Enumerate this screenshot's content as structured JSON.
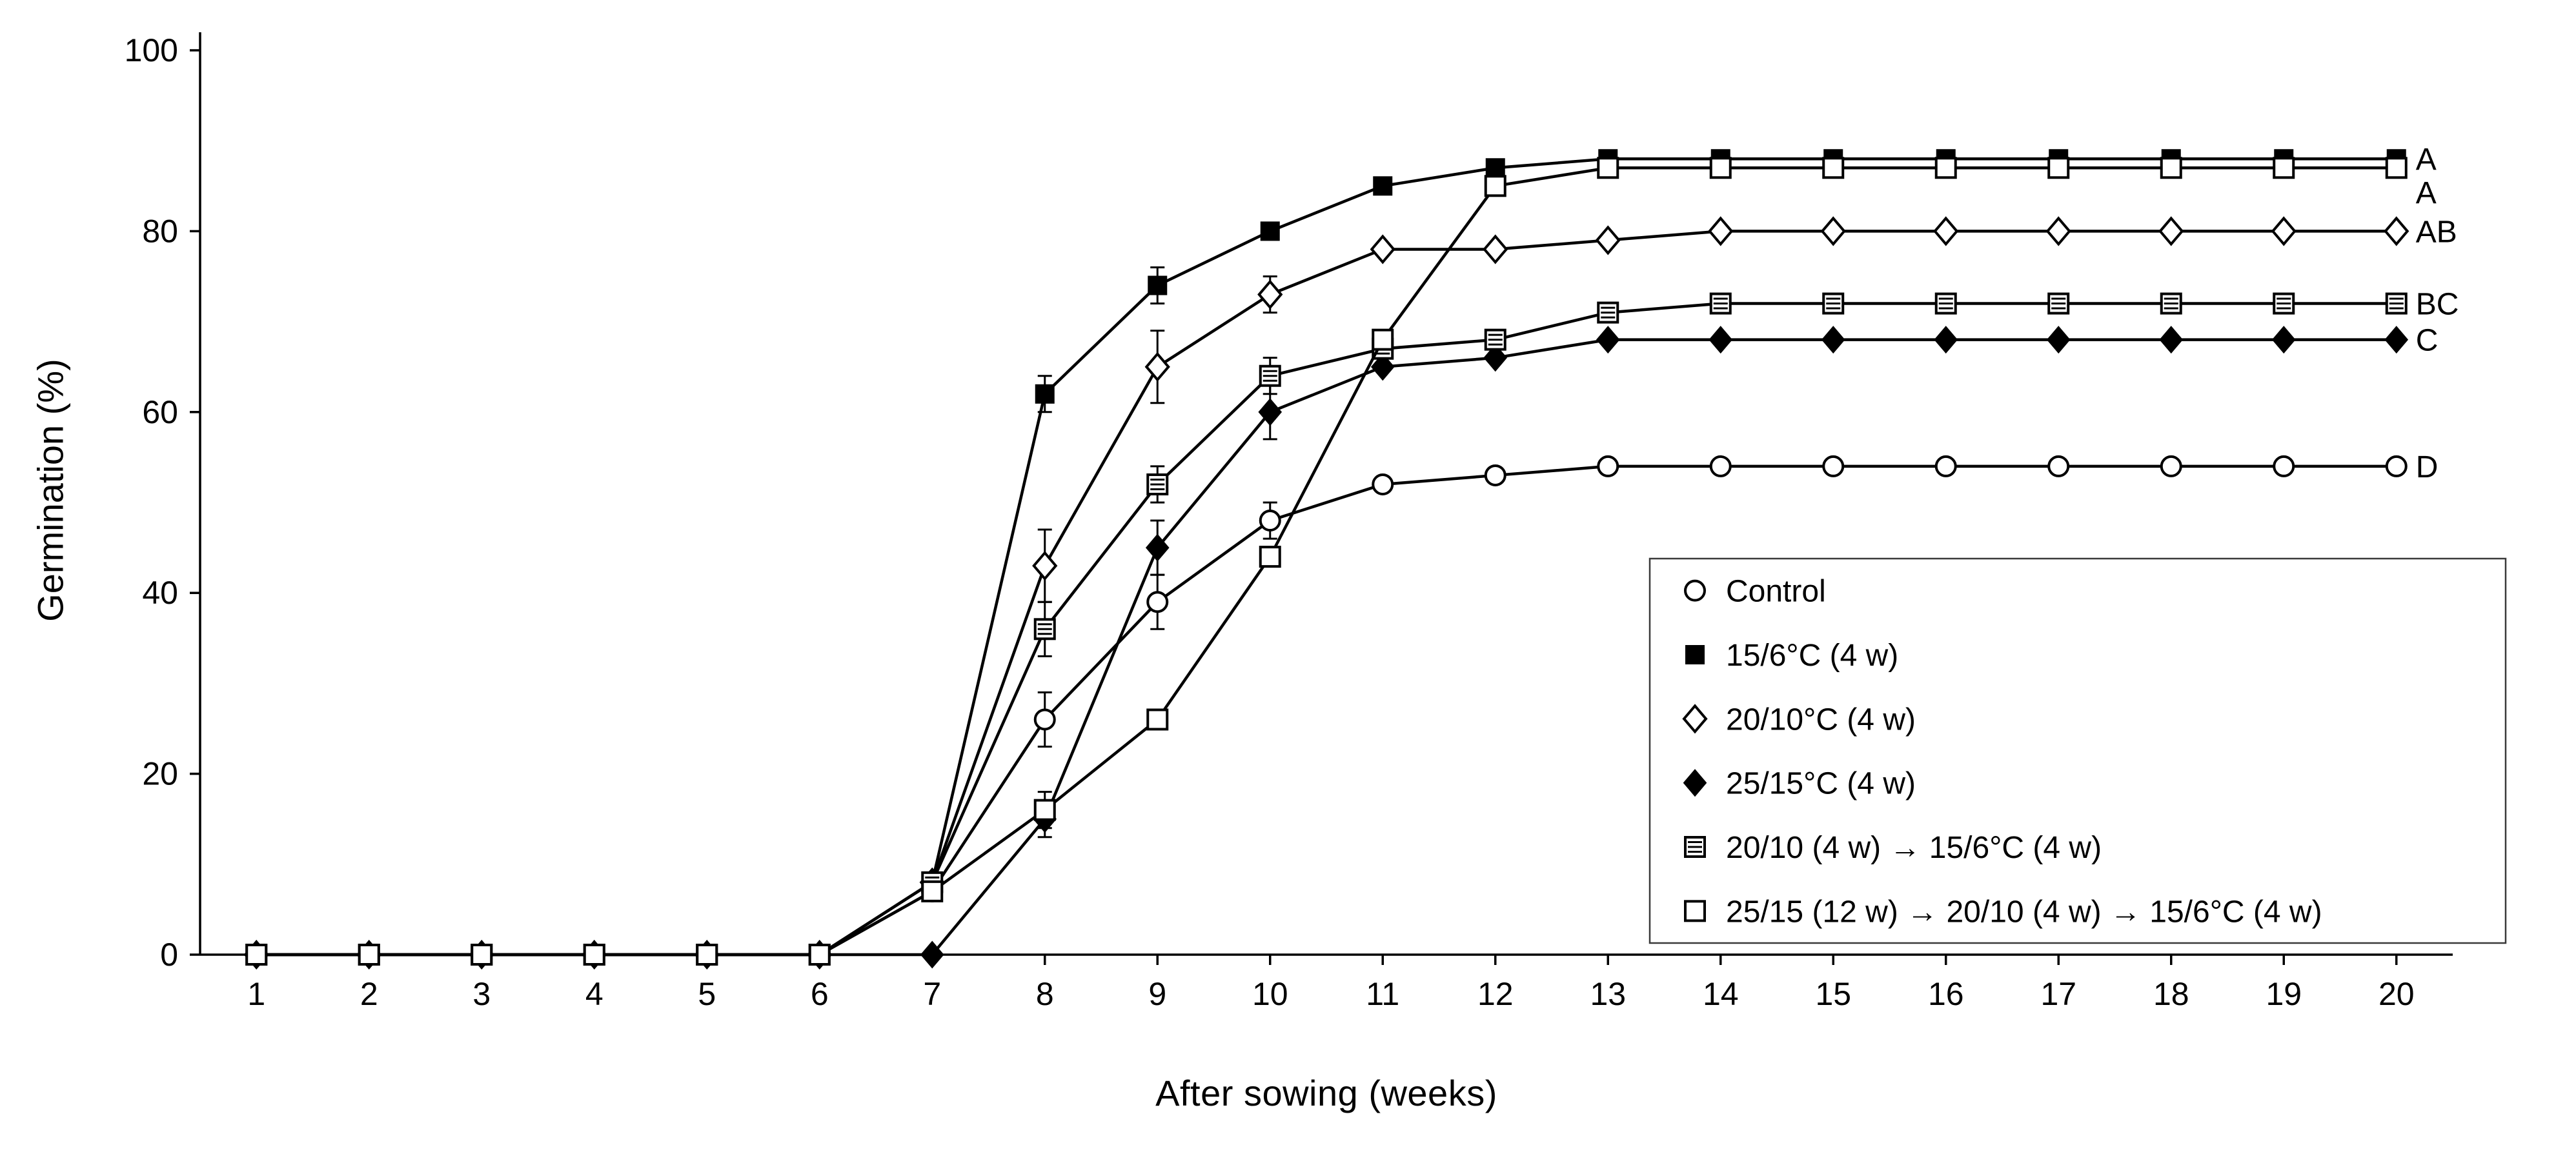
{
  "chart_data": {
    "type": "line",
    "title": "",
    "xlabel": "After sowing (weeks)",
    "ylabel": "Germination (%)",
    "x": [
      1,
      2,
      3,
      4,
      5,
      6,
      7,
      8,
      9,
      10,
      11,
      12,
      13,
      14,
      15,
      16,
      17,
      18,
      19,
      20
    ],
    "xlim": [
      0.5,
      20.5
    ],
    "ylim": [
      0,
      100
    ],
    "yticks": [
      0,
      20,
      40,
      60,
      80,
      100
    ],
    "grid": false,
    "line_color": "#000000",
    "legend_position": "inside-lower-right",
    "series": [
      {
        "name": "Control",
        "marker": "open-circle",
        "end_label": "D",
        "values": [
          0,
          0,
          0,
          0,
          0,
          0,
          7,
          26,
          39,
          48,
          52,
          53,
          54,
          54,
          54,
          54,
          54,
          54,
          54,
          54
        ],
        "errors": [
          0,
          0,
          0,
          0,
          0,
          0,
          1,
          3,
          3,
          2,
          0,
          0,
          0,
          0,
          0,
          0,
          0,
          0,
          0,
          0
        ]
      },
      {
        "name": "15/6°C (4 w)",
        "marker": "filled-square",
        "end_label": "A",
        "values": [
          0,
          0,
          0,
          0,
          0,
          0,
          8,
          62,
          74,
          80,
          85,
          87,
          88,
          88,
          88,
          88,
          88,
          88,
          88,
          88
        ],
        "errors": [
          0,
          0,
          0,
          0,
          0,
          0,
          1,
          2,
          2,
          0,
          0,
          0,
          0,
          0,
          0,
          0,
          0,
          0,
          0,
          0
        ]
      },
      {
        "name": "20/10°C (4 w)",
        "marker": "open-diamond",
        "end_label": "AB",
        "values": [
          0,
          0,
          0,
          0,
          0,
          0,
          8,
          43,
          65,
          73,
          78,
          78,
          79,
          80,
          80,
          80,
          80,
          80,
          80,
          80
        ],
        "errors": [
          0,
          0,
          0,
          0,
          0,
          0,
          1,
          4,
          4,
          2,
          0,
          0,
          0,
          0,
          0,
          0,
          0,
          0,
          0,
          0
        ]
      },
      {
        "name": "25/15°C (4 w)",
        "marker": "filled-diamond",
        "end_label": "C",
        "values": [
          0,
          0,
          0,
          0,
          0,
          0,
          0,
          15,
          45,
          60,
          65,
          66,
          68,
          68,
          68,
          68,
          68,
          68,
          68,
          68
        ],
        "errors": [
          0,
          0,
          0,
          0,
          0,
          0,
          0,
          2,
          3,
          3,
          0,
          0,
          0,
          0,
          0,
          0,
          0,
          0,
          0,
          0
        ]
      },
      {
        "name": "20/10 (4 w) → 15/6°C (4 w)",
        "marker": "striped-square",
        "end_label": "BC",
        "values": [
          0,
          0,
          0,
          0,
          0,
          0,
          8,
          36,
          52,
          64,
          67,
          68,
          71,
          72,
          72,
          72,
          72,
          72,
          72,
          72
        ],
        "errors": [
          0,
          0,
          0,
          0,
          0,
          0,
          1,
          3,
          2,
          2,
          0,
          0,
          0,
          0,
          0,
          0,
          0,
          0,
          0,
          0
        ]
      },
      {
        "name": "25/15 (12 w) → 20/10 (4 w) → 15/6°C (4 w)",
        "marker": "open-square",
        "end_label": "A",
        "values": [
          0,
          0,
          0,
          0,
          0,
          0,
          7,
          16,
          26,
          44,
          68,
          85,
          87,
          87,
          87,
          87,
          87,
          87,
          87,
          87
        ],
        "errors": [
          0,
          0,
          0,
          0,
          0,
          0,
          1,
          2,
          0,
          0,
          0,
          0,
          0,
          0,
          0,
          0,
          0,
          0,
          0,
          0
        ]
      }
    ]
  }
}
